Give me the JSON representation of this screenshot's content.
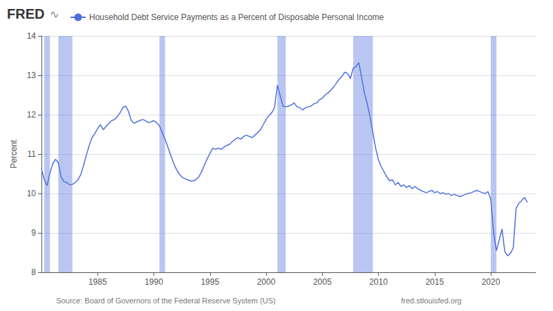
{
  "chart_data": {
    "type": "line",
    "ylabel": "Percent",
    "annotations": [
      "FRED",
      "∿",
      "Source: Board of Governors of the Federal Reserve System (US)",
      "fred.stlouisfed.org"
    ],
    "legend": "upper left",
    "grid": true,
    "xlim": [
      1980,
      2024
    ],
    "xticks": [
      1985,
      1990,
      1995,
      2000,
      2005,
      2010,
      2015,
      2020
    ],
    "ylim": [
      8,
      14
    ],
    "yticks": [
      8,
      9,
      10,
      11,
      12,
      13,
      14
    ],
    "recession_bands": [
      [
        1980.25,
        1980.75
      ],
      [
        1981.5,
        1982.75
      ],
      [
        1990.5,
        1991.0
      ],
      [
        2001.0,
        2001.75
      ],
      [
        2007.75,
        2009.5
      ],
      [
        2020.0,
        2020.5
      ]
    ],
    "x": [
      1980.0,
      1980.25,
      1980.5,
      1980.75,
      1981.0,
      1981.25,
      1981.5,
      1981.75,
      1982.0,
      1982.25,
      1982.5,
      1982.75,
      1983.0,
      1983.25,
      1983.5,
      1983.75,
      1984.0,
      1984.25,
      1984.5,
      1984.75,
      1985.0,
      1985.25,
      1985.5,
      1985.75,
      1986.0,
      1986.25,
      1986.5,
      1986.75,
      1987.0,
      1987.25,
      1987.5,
      1987.75,
      1988.0,
      1988.25,
      1988.5,
      1988.75,
      1989.0,
      1989.25,
      1989.5,
      1989.75,
      1990.0,
      1990.25,
      1990.5,
      1990.75,
      1991.0,
      1991.25,
      1991.5,
      1991.75,
      1992.0,
      1992.25,
      1992.5,
      1992.75,
      1993.0,
      1993.25,
      1993.5,
      1993.75,
      1994.0,
      1994.25,
      1994.5,
      1994.75,
      1995.0,
      1995.25,
      1995.5,
      1995.75,
      1996.0,
      1996.25,
      1996.5,
      1996.75,
      1997.0,
      1997.25,
      1997.5,
      1997.75,
      1998.0,
      1998.25,
      1998.5,
      1998.75,
      1999.0,
      1999.25,
      1999.5,
      1999.75,
      2000.0,
      2000.25,
      2000.5,
      2000.75,
      2001.0,
      2001.25,
      2001.5,
      2001.75,
      2002.0,
      2002.25,
      2002.5,
      2002.75,
      2003.0,
      2003.25,
      2003.5,
      2003.75,
      2004.0,
      2004.25,
      2004.5,
      2004.75,
      2005.0,
      2005.25,
      2005.5,
      2005.75,
      2006.0,
      2006.25,
      2006.5,
      2006.75,
      2007.0,
      2007.25,
      2007.5,
      2007.75,
      2008.0,
      2008.25,
      2008.5,
      2008.75,
      2009.0,
      2009.25,
      2009.5,
      2009.75,
      2010.0,
      2010.25,
      2010.5,
      2010.75,
      2011.0,
      2011.25,
      2011.5,
      2011.75,
      2012.0,
      2012.25,
      2012.5,
      2012.75,
      2013.0,
      2013.25,
      2013.5,
      2013.75,
      2014.0,
      2014.25,
      2014.5,
      2014.75,
      2015.0,
      2015.25,
      2015.5,
      2015.75,
      2016.0,
      2016.25,
      2016.5,
      2016.75,
      2017.0,
      2017.25,
      2017.5,
      2017.75,
      2018.0,
      2018.25,
      2018.5,
      2018.75,
      2019.0,
      2019.25,
      2019.5,
      2019.75,
      2020.0,
      2020.25,
      2020.5,
      2020.75,
      2021.0,
      2021.25,
      2021.5,
      2021.75,
      2022.0,
      2022.25,
      2022.5,
      2022.75,
      2023.0,
      2023.25
    ],
    "series": [
      {
        "name": "Household Debt Service Payments as a Percent of Disposable Personal Income",
        "values": [
          10.62,
          10.35,
          10.2,
          10.52,
          10.75,
          10.87,
          10.78,
          10.42,
          10.3,
          10.28,
          10.22,
          10.23,
          10.28,
          10.35,
          10.48,
          10.72,
          10.98,
          11.22,
          11.42,
          11.52,
          11.65,
          11.75,
          11.62,
          11.7,
          11.78,
          11.85,
          11.88,
          11.95,
          12.05,
          12.18,
          12.22,
          12.08,
          11.85,
          11.78,
          11.82,
          11.85,
          11.88,
          11.85,
          11.8,
          11.82,
          11.85,
          11.8,
          11.72,
          11.55,
          11.38,
          11.18,
          10.98,
          10.78,
          10.62,
          10.5,
          10.42,
          10.38,
          10.35,
          10.32,
          10.32,
          10.35,
          10.42,
          10.55,
          10.72,
          10.88,
          11.02,
          11.15,
          11.12,
          11.15,
          11.12,
          11.18,
          11.22,
          11.25,
          11.32,
          11.38,
          11.42,
          11.38,
          11.45,
          11.48,
          11.45,
          11.42,
          11.48,
          11.55,
          11.62,
          11.75,
          11.88,
          11.98,
          12.05,
          12.18,
          12.75,
          12.48,
          12.22,
          12.2,
          12.22,
          12.25,
          12.3,
          12.2,
          12.18,
          12.12,
          12.18,
          12.2,
          12.22,
          12.28,
          12.3,
          12.38,
          12.42,
          12.5,
          12.55,
          12.62,
          12.7,
          12.8,
          12.9,
          12.98,
          13.08,
          13.05,
          12.92,
          13.18,
          13.22,
          13.32,
          12.95,
          12.55,
          12.28,
          11.95,
          11.55,
          11.15,
          10.85,
          10.68,
          10.55,
          10.42,
          10.32,
          10.35,
          10.22,
          10.28,
          10.18,
          10.22,
          10.15,
          10.2,
          10.12,
          10.18,
          10.12,
          10.08,
          10.05,
          10.02,
          10.05,
          10.08,
          10.02,
          10.05,
          10.0,
          10.02,
          9.98,
          10.0,
          9.95,
          9.98,
          9.95,
          9.92,
          9.95,
          9.98,
          10.0,
          10.02,
          10.05,
          10.08,
          10.05,
          10.02,
          10.0,
          10.05,
          9.85,
          9.02,
          8.55,
          8.82,
          9.1,
          8.52,
          8.42,
          8.48,
          8.62,
          9.62,
          9.75,
          9.82,
          9.9,
          9.78
        ]
      }
    ]
  }
}
